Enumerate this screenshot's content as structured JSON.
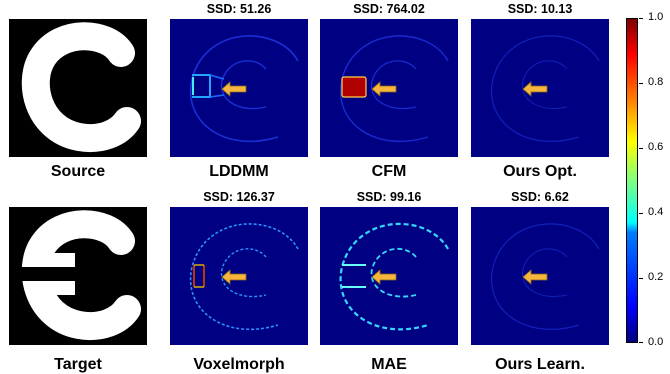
{
  "panels": {
    "source": {
      "label": "Source"
    },
    "target": {
      "label": "Target"
    },
    "lddmm": {
      "label": "LDDMM",
      "ssd": ""
    },
    "cfm": {
      "label": "CFM",
      "ssd": "SSD: 764.02"
    },
    "ours_opt": {
      "label": "Ours Opt.",
      "ssd": "SSD: 10.13"
    },
    "voxelmorph": {
      "label": "Voxelmorph",
      "ssd": "SSD: 126.37"
    },
    "mae": {
      "label": "MAE",
      "ssd": "SSD: 99.16"
    },
    "ours_learn": {
      "label": "Ours Learn.",
      "ssd": "SSD: 6.62"
    }
  },
  "lddmm_ssd": "SSD: 51.26",
  "colorbar": {
    "ticks": [
      "1.0",
      "0.8",
      "0.6",
      "0.4",
      "0.2",
      "0.0"
    ],
    "colormap": "jet",
    "range": [
      0.0,
      1.0
    ]
  },
  "colors": {
    "arrow": "#f6b53c",
    "arrow_stroke": "#8a6a1a",
    "bg_blue": "#000080"
  }
}
